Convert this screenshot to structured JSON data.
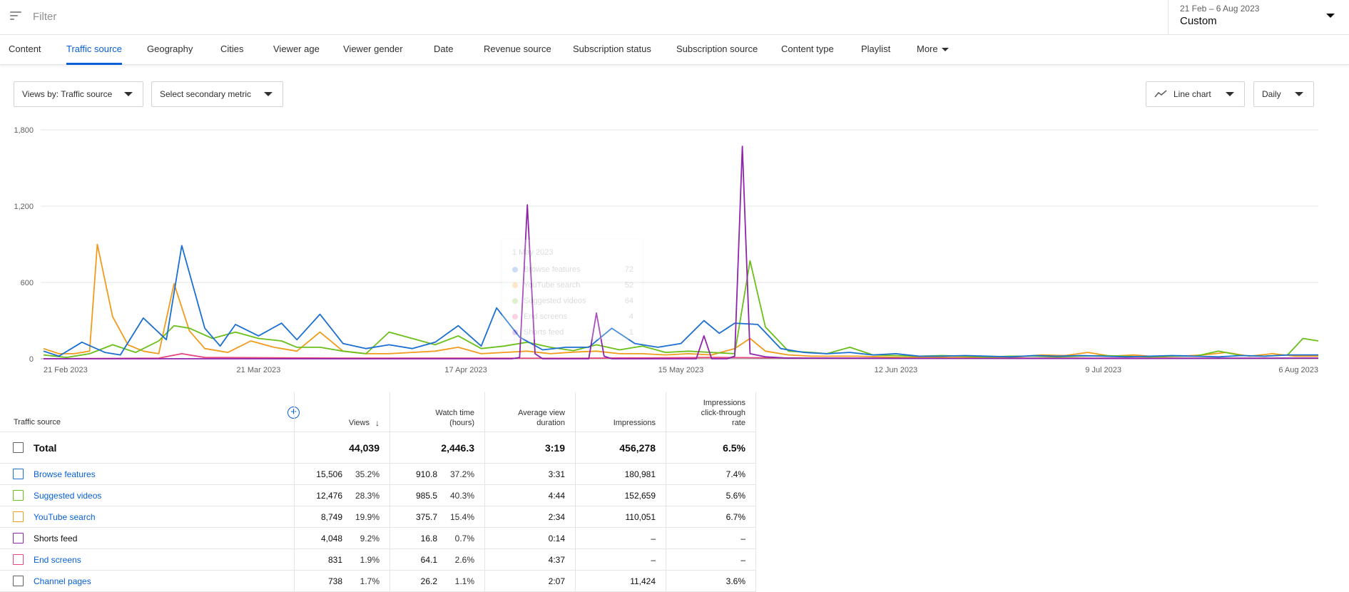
{
  "filter": {
    "placeholder": "Filter",
    "icon": "filter-icon"
  },
  "date_picker": {
    "range": "21 Feb – 6 Aug 2023",
    "preset": "Custom"
  },
  "tabs": [
    {
      "label": "Content"
    },
    {
      "label": "Traffic source",
      "active": true
    },
    {
      "label": "Geography"
    },
    {
      "label": "Cities"
    },
    {
      "label": "Viewer age"
    },
    {
      "label": "Viewer gender"
    },
    {
      "label": "Date"
    },
    {
      "label": "Revenue source"
    },
    {
      "label": "Subscription status"
    },
    {
      "label": "Subscription source"
    },
    {
      "label": "Content type"
    },
    {
      "label": "Playlist"
    },
    {
      "label": "More"
    }
  ],
  "controls": {
    "metric": "Views by: Traffic source",
    "secondary": "Select secondary metric",
    "chart_type": "Line chart",
    "interval": "Daily"
  },
  "colors": {
    "browse": "#1a6fd1",
    "suggested": "#6abf1a",
    "search": "#f19b1c",
    "shorts": "#8e24aa",
    "endscreens": "#e8467c",
    "grid": "#e5e5e5",
    "accent": "#065fd4"
  },
  "tooltip": {
    "date": "1 May 2023",
    "rows": [
      {
        "label": "Browse features",
        "value": "72",
        "color": "#1a6fd1"
      },
      {
        "label": "YouTube search",
        "value": "52",
        "color": "#f19b1c"
      },
      {
        "label": "Suggested videos",
        "value": "64",
        "color": "#6abf1a"
      },
      {
        "label": "End screens",
        "value": "4",
        "color": "#e8467c"
      },
      {
        "label": "Shorts feed",
        "value": "1",
        "color": "#8e24aa"
      }
    ]
  },
  "chart_data": {
    "type": "line",
    "ylim": [
      0,
      1800
    ],
    "yticks": [
      "0",
      "600",
      "1,200",
      "1,800"
    ],
    "xticks": [
      "21 Feb 2023",
      "21 Mar 2023",
      "17 Apr 2023",
      "15 May 2023",
      "12 Jun 2023",
      "9 Jul 2023",
      "6 Aug 2023"
    ],
    "x_range": [
      "2023-02-21",
      "2023-08-06"
    ],
    "series": [
      {
        "name": "Browse features",
        "color": "#1a6fd1",
        "points": [
          [
            "2023-02-21",
            60
          ],
          [
            "2023-02-23",
            20
          ],
          [
            "2023-02-26",
            130
          ],
          [
            "2023-03-01",
            50
          ],
          [
            "2023-03-03",
            30
          ],
          [
            "2023-03-06",
            320
          ],
          [
            "2023-03-09",
            150
          ],
          [
            "2023-03-11",
            890
          ],
          [
            "2023-03-14",
            240
          ],
          [
            "2023-03-16",
            100
          ],
          [
            "2023-03-18",
            270
          ],
          [
            "2023-03-21",
            180
          ],
          [
            "2023-03-24",
            280
          ],
          [
            "2023-03-26",
            150
          ],
          [
            "2023-03-29",
            350
          ],
          [
            "2023-04-01",
            120
          ],
          [
            "2023-04-04",
            80
          ],
          [
            "2023-04-07",
            110
          ],
          [
            "2023-04-10",
            80
          ],
          [
            "2023-04-13",
            130
          ],
          [
            "2023-04-16",
            260
          ],
          [
            "2023-04-19",
            100
          ],
          [
            "2023-04-21",
            400
          ],
          [
            "2023-04-24",
            170
          ],
          [
            "2023-04-27",
            70
          ],
          [
            "2023-04-30",
            90
          ],
          [
            "2023-05-03",
            90
          ],
          [
            "2023-05-06",
            240
          ],
          [
            "2023-05-09",
            120
          ],
          [
            "2023-05-12",
            90
          ],
          [
            "2023-05-15",
            120
          ],
          [
            "2023-05-18",
            300
          ],
          [
            "2023-05-20",
            200
          ],
          [
            "2023-05-22",
            280
          ],
          [
            "2023-05-25",
            270
          ],
          [
            "2023-05-28",
            80
          ],
          [
            "2023-05-31",
            50
          ],
          [
            "2023-06-03",
            40
          ],
          [
            "2023-06-06",
            50
          ],
          [
            "2023-06-09",
            30
          ],
          [
            "2023-06-12",
            40
          ],
          [
            "2023-06-15",
            20
          ],
          [
            "2023-06-18",
            20
          ],
          [
            "2023-06-21",
            25
          ],
          [
            "2023-06-24",
            20
          ],
          [
            "2023-06-27",
            15
          ],
          [
            "2023-06-30",
            25
          ],
          [
            "2023-07-03",
            20
          ],
          [
            "2023-07-06",
            25
          ],
          [
            "2023-07-09",
            20
          ],
          [
            "2023-07-12",
            15
          ],
          [
            "2023-07-15",
            20
          ],
          [
            "2023-07-18",
            25
          ],
          [
            "2023-07-21",
            20
          ],
          [
            "2023-07-24",
            15
          ],
          [
            "2023-07-27",
            25
          ],
          [
            "2023-07-30",
            20
          ],
          [
            "2023-08-02",
            30
          ],
          [
            "2023-08-06",
            30
          ]
        ]
      },
      {
        "name": "Suggested videos",
        "color": "#6abf1a",
        "points": [
          [
            "2023-02-21",
            30
          ],
          [
            "2023-02-24",
            10
          ],
          [
            "2023-02-27",
            40
          ],
          [
            "2023-03-02",
            110
          ],
          [
            "2023-03-05",
            50
          ],
          [
            "2023-03-08",
            140
          ],
          [
            "2023-03-10",
            260
          ],
          [
            "2023-03-12",
            240
          ],
          [
            "2023-03-15",
            160
          ],
          [
            "2023-03-18",
            210
          ],
          [
            "2023-03-21",
            160
          ],
          [
            "2023-03-24",
            140
          ],
          [
            "2023-03-26",
            90
          ],
          [
            "2023-03-29",
            90
          ],
          [
            "2023-04-01",
            60
          ],
          [
            "2023-04-04",
            40
          ],
          [
            "2023-04-07",
            210
          ],
          [
            "2023-04-10",
            160
          ],
          [
            "2023-04-13",
            110
          ],
          [
            "2023-04-16",
            180
          ],
          [
            "2023-04-19",
            80
          ],
          [
            "2023-04-22",
            100
          ],
          [
            "2023-04-25",
            130
          ],
          [
            "2023-04-28",
            90
          ],
          [
            "2023-05-01",
            64
          ],
          [
            "2023-05-04",
            110
          ],
          [
            "2023-05-07",
            70
          ],
          [
            "2023-05-10",
            100
          ],
          [
            "2023-05-13",
            50
          ],
          [
            "2023-05-16",
            60
          ],
          [
            "2023-05-19",
            50
          ],
          [
            "2023-05-22",
            40
          ],
          [
            "2023-05-24",
            770
          ],
          [
            "2023-05-26",
            250
          ],
          [
            "2023-05-29",
            60
          ],
          [
            "2023-06-01",
            50
          ],
          [
            "2023-06-03",
            40
          ],
          [
            "2023-06-06",
            90
          ],
          [
            "2023-06-09",
            30
          ],
          [
            "2023-06-12",
            25
          ],
          [
            "2023-06-15",
            20
          ],
          [
            "2023-06-18",
            25
          ],
          [
            "2023-06-21",
            20
          ],
          [
            "2023-06-24",
            15
          ],
          [
            "2023-06-27",
            20
          ],
          [
            "2023-06-30",
            20
          ],
          [
            "2023-07-03",
            15
          ],
          [
            "2023-07-06",
            20
          ],
          [
            "2023-07-09",
            25
          ],
          [
            "2023-07-12",
            20
          ],
          [
            "2023-07-15",
            15
          ],
          [
            "2023-07-18",
            20
          ],
          [
            "2023-07-21",
            20
          ],
          [
            "2023-07-24",
            60
          ],
          [
            "2023-07-27",
            25
          ],
          [
            "2023-07-30",
            20
          ],
          [
            "2023-08-02",
            30
          ],
          [
            "2023-08-04",
            160
          ],
          [
            "2023-08-06",
            140
          ]
        ]
      },
      {
        "name": "YouTube search",
        "color": "#f19b1c",
        "points": [
          [
            "2023-02-21",
            80
          ],
          [
            "2023-02-23",
            40
          ],
          [
            "2023-02-25",
            40
          ],
          [
            "2023-02-27",
            60
          ],
          [
            "2023-02-28",
            900
          ],
          [
            "2023-03-02",
            330
          ],
          [
            "2023-03-04",
            110
          ],
          [
            "2023-03-06",
            60
          ],
          [
            "2023-03-08",
            40
          ],
          [
            "2023-03-10",
            590
          ],
          [
            "2023-03-12",
            220
          ],
          [
            "2023-03-14",
            80
          ],
          [
            "2023-03-17",
            50
          ],
          [
            "2023-03-20",
            140
          ],
          [
            "2023-03-23",
            90
          ],
          [
            "2023-03-26",
            60
          ],
          [
            "2023-03-29",
            210
          ],
          [
            "2023-04-01",
            60
          ],
          [
            "2023-04-04",
            40
          ],
          [
            "2023-04-07",
            40
          ],
          [
            "2023-04-10",
            50
          ],
          [
            "2023-04-13",
            60
          ],
          [
            "2023-04-16",
            90
          ],
          [
            "2023-04-19",
            40
          ],
          [
            "2023-04-22",
            50
          ],
          [
            "2023-04-25",
            60
          ],
          [
            "2023-04-28",
            40
          ],
          [
            "2023-05-01",
            52
          ],
          [
            "2023-05-04",
            60
          ],
          [
            "2023-05-07",
            40
          ],
          [
            "2023-05-10",
            40
          ],
          [
            "2023-05-13",
            30
          ],
          [
            "2023-05-16",
            40
          ],
          [
            "2023-05-19",
            30
          ],
          [
            "2023-05-22",
            80
          ],
          [
            "2023-05-24",
            160
          ],
          [
            "2023-05-26",
            60
          ],
          [
            "2023-05-29",
            30
          ],
          [
            "2023-06-01",
            20
          ],
          [
            "2023-06-04",
            20
          ],
          [
            "2023-06-07",
            20
          ],
          [
            "2023-06-10",
            15
          ],
          [
            "2023-06-13",
            10
          ],
          [
            "2023-06-16",
            15
          ],
          [
            "2023-06-19",
            10
          ],
          [
            "2023-06-22",
            10
          ],
          [
            "2023-06-25",
            10
          ],
          [
            "2023-06-28",
            15
          ],
          [
            "2023-07-01",
            30
          ],
          [
            "2023-07-04",
            25
          ],
          [
            "2023-07-07",
            50
          ],
          [
            "2023-07-10",
            20
          ],
          [
            "2023-07-13",
            30
          ],
          [
            "2023-07-16",
            15
          ],
          [
            "2023-07-19",
            20
          ],
          [
            "2023-07-22",
            30
          ],
          [
            "2023-07-25",
            50
          ],
          [
            "2023-07-28",
            20
          ],
          [
            "2023-07-31",
            40
          ],
          [
            "2023-08-03",
            20
          ],
          [
            "2023-08-06",
            20
          ]
        ]
      },
      {
        "name": "Shorts feed",
        "color": "#8e24aa",
        "points": [
          [
            "2023-02-21",
            0
          ],
          [
            "2023-04-23",
            0
          ],
          [
            "2023-04-24",
            10
          ],
          [
            "2023-04-25",
            1210
          ],
          [
            "2023-04-26",
            40
          ],
          [
            "2023-04-27",
            0
          ],
          [
            "2023-05-03",
            0
          ],
          [
            "2023-05-04",
            360
          ],
          [
            "2023-05-05",
            20
          ],
          [
            "2023-05-06",
            0
          ],
          [
            "2023-05-17",
            0
          ],
          [
            "2023-05-18",
            180
          ],
          [
            "2023-05-19",
            0
          ],
          [
            "2023-05-21",
            0
          ],
          [
            "2023-05-22",
            20
          ],
          [
            "2023-05-23",
            1670
          ],
          [
            "2023-05-24",
            40
          ],
          [
            "2023-05-26",
            15
          ],
          [
            "2023-05-29",
            5
          ],
          [
            "2023-06-15",
            3
          ],
          [
            "2023-07-15",
            2
          ],
          [
            "2023-08-06",
            5
          ]
        ]
      },
      {
        "name": "End screens",
        "color": "#e8467c",
        "points": [
          [
            "2023-02-21",
            0
          ],
          [
            "2023-03-08",
            5
          ],
          [
            "2023-03-11",
            40
          ],
          [
            "2023-03-14",
            10
          ],
          [
            "2023-04-01",
            5
          ],
          [
            "2023-05-01",
            4
          ],
          [
            "2023-05-20",
            10
          ],
          [
            "2023-06-01",
            5
          ],
          [
            "2023-08-06",
            5
          ]
        ]
      }
    ]
  },
  "table": {
    "headers": {
      "source": "Traffic source",
      "views": "Views",
      "watch_time_1": "Watch time",
      "watch_time_2": "(hours)",
      "avd_1": "Average view",
      "avd_2": "duration",
      "impressions": "Impressions",
      "ctr_1": "Impressions",
      "ctr_2": "click-through",
      "ctr_3": "rate"
    },
    "total": {
      "label": "Total",
      "views": "44,039",
      "watch": "2,446.3",
      "avd": "3:19",
      "impressions": "456,278",
      "ctr": "6.5%"
    },
    "rows": [
      {
        "label": "Browse features",
        "link": true,
        "color": "#1a6fd1",
        "views": "15,506",
        "views_pct": "35.2%",
        "watch": "910.8",
        "watch_pct": "37.2%",
        "avd": "3:31",
        "impressions": "180,981",
        "ctr": "7.4%"
      },
      {
        "label": "Suggested videos",
        "link": true,
        "color": "#6abf1a",
        "views": "12,476",
        "views_pct": "28.3%",
        "watch": "985.5",
        "watch_pct": "40.3%",
        "avd": "4:44",
        "impressions": "152,659",
        "ctr": "5.6%"
      },
      {
        "label": "YouTube search",
        "link": true,
        "color": "#f19b1c",
        "views": "8,749",
        "views_pct": "19.9%",
        "watch": "375.7",
        "watch_pct": "15.4%",
        "avd": "2:34",
        "impressions": "110,051",
        "ctr": "6.7%"
      },
      {
        "label": "Shorts feed",
        "link": false,
        "color": "#8e24aa",
        "views": "4,048",
        "views_pct": "9.2%",
        "watch": "16.8",
        "watch_pct": "0.7%",
        "avd": "0:14",
        "impressions": "–",
        "ctr": "–"
      },
      {
        "label": "End screens",
        "link": true,
        "color": "#e8467c",
        "views": "831",
        "views_pct": "1.9%",
        "watch": "64.1",
        "watch_pct": "2.6%",
        "avd": "4:37",
        "impressions": "–",
        "ctr": "–"
      },
      {
        "label": "Channel pages",
        "link": true,
        "color": "#606060",
        "views": "738",
        "views_pct": "1.7%",
        "watch": "26.2",
        "watch_pct": "1.1%",
        "avd": "2:07",
        "impressions": "11,424",
        "ctr": "3.6%"
      }
    ]
  }
}
